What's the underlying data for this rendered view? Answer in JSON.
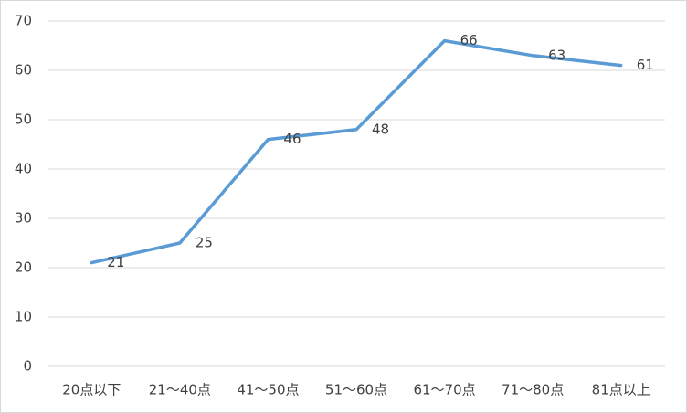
{
  "chart_data": {
    "type": "line",
    "categories": [
      "20点以下",
      "21～40点",
      "41～50点",
      "51～60点",
      "61～70点",
      "71～80点",
      "81点以上"
    ],
    "values": [
      21,
      25,
      46,
      48,
      66,
      63,
      61
    ],
    "color": "#5b9bd5",
    "ylim": [
      0,
      70
    ],
    "yticks": [
      0,
      10,
      20,
      30,
      40,
      50,
      60,
      70
    ],
    "grid": true
  }
}
